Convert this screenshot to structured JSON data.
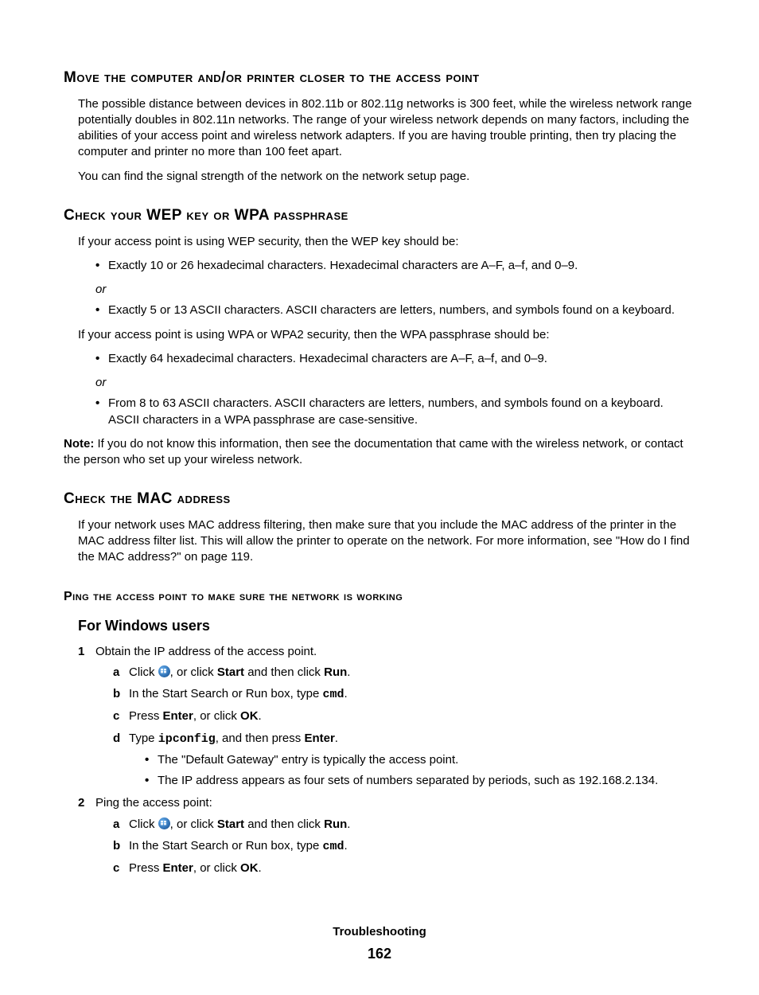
{
  "section1": {
    "heading": "Move the computer and/or printer closer to the access point",
    "p1": "The possible distance between devices in 802.11b or 802.11g networks is 300 feet, while the wireless network range potentially doubles in 802.11n networks. The range of your wireless network depends on many factors, including the abilities of your access point and wireless network adapters. If you are having trouble printing, then try placing the computer and printer no more than 100 feet apart.",
    "p2": "You can find the signal strength of the network on the network setup page."
  },
  "section2": {
    "heading": "Check your WEP key or WPA passphrase",
    "intro1": "If your access point is using WEP security, then the WEP key should be:",
    "wep1": "Exactly 10 or 26 hexadecimal characters. Hexadecimal characters are A–F, a–f, and 0–9.",
    "or": "or",
    "wep2": "Exactly 5 or 13 ASCII characters. ASCII characters are letters, numbers, and symbols found on a keyboard.",
    "intro2": "If your access point is using WPA or WPA2 security, then the WPA passphrase should be:",
    "wpa1": "Exactly 64 hexadecimal characters. Hexadecimal characters are A–F, a–f, and 0–9.",
    "wpa2": "From 8 to 63 ASCII characters. ASCII characters are letters, numbers, and symbols found on a keyboard. ASCII characters in a WPA passphrase are case-sensitive.",
    "note_label": "Note:",
    "note_body": " If you do not know this information, then see the documentation that came with the wireless network, or contact the person who set up your wireless network."
  },
  "section3": {
    "heading": "Check the MAC address",
    "body": "If your network uses MAC address filtering, then make sure that you include the MAC address of the printer in the MAC address filter list. This will allow the printer to operate on the network. For more information, see \"How do I find the MAC address?\" on page 119."
  },
  "section4": {
    "heading": "Ping the access point to make sure the network is working",
    "sub": "For Windows users",
    "step1": "Obtain the IP address of the access point.",
    "s1a_pre": "Click ",
    "s1a_mid": ", or click ",
    "start": "Start",
    "s1a_mid2": " and then click ",
    "run": "Run",
    "period": ".",
    "s1b_pre": "In the Start Search or Run box, type ",
    "cmd": "cmd",
    "s1c_pre": "Press ",
    "enter": "Enter",
    "s1c_mid": ", or click ",
    "ok": "OK",
    "s1d_pre": "Type ",
    "ipconfig": "ipconfig",
    "s1d_mid": ", and then press ",
    "bullet1": "The \"Default Gateway\" entry is typically the access point.",
    "bullet2": "The IP address appears as four sets of numbers separated by periods, such as 192.168.2.134.",
    "step2": "Ping the access point:"
  },
  "footer": {
    "title": "Troubleshooting",
    "page": "162"
  }
}
